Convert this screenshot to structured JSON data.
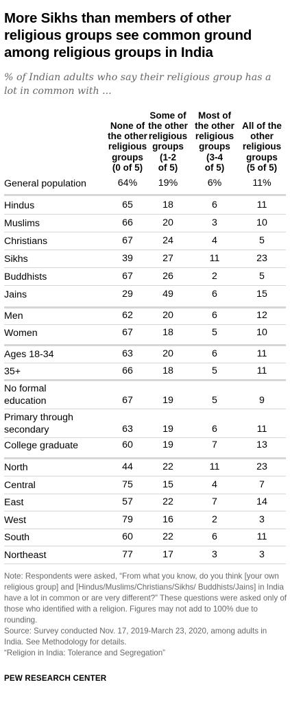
{
  "header": {
    "title": "More Sikhs than members of other religious groups see common ground among religious groups in India",
    "subtitle": "% of Indian adults who say their religious group has a lot in common with ..."
  },
  "chart_data": {
    "type": "table",
    "columns": [
      "None of\nthe other\nreligious\ngroups\n(0 of 5)",
      "Some of\nthe other\nreligious\ngroups\n(1-2\nof 5)",
      "Most of\nthe other\nreligious\ngroups\n(3-4\nof 5)",
      "All of the\nother\nreligious\ngroups\n(5 of 5)"
    ],
    "rows": [
      {
        "label": "General population",
        "values": [
          "64%",
          "19%",
          "6%",
          "11%"
        ]
      },
      {
        "label": "Hindus",
        "values": [
          "65",
          "18",
          "6",
          "11"
        ]
      },
      {
        "label": "Muslims",
        "values": [
          "66",
          "20",
          "3",
          "10"
        ]
      },
      {
        "label": "Christians",
        "values": [
          "67",
          "24",
          "4",
          "5"
        ]
      },
      {
        "label": "Sikhs",
        "values": [
          "39",
          "27",
          "11",
          "23"
        ]
      },
      {
        "label": "Buddhists",
        "values": [
          "67",
          "26",
          "2",
          "5"
        ]
      },
      {
        "label": "Jains",
        "values": [
          "29",
          "49",
          "6",
          "15"
        ]
      },
      {
        "label": "Men",
        "values": [
          "62",
          "20",
          "6",
          "12"
        ]
      },
      {
        "label": "Women",
        "values": [
          "67",
          "18",
          "5",
          "10"
        ]
      },
      {
        "label": "Ages 18-34",
        "values": [
          "63",
          "20",
          "6",
          "11"
        ]
      },
      {
        "label": "35+",
        "values": [
          "66",
          "18",
          "5",
          "11"
        ]
      },
      {
        "label": "No formal\neducation",
        "values": [
          "67",
          "19",
          "5",
          "9"
        ]
      },
      {
        "label": "Primary through\nsecondary",
        "values": [
          "63",
          "19",
          "6",
          "11"
        ]
      },
      {
        "label": "College graduate",
        "values": [
          "60",
          "19",
          "7",
          "13"
        ]
      },
      {
        "label": "North",
        "values": [
          "44",
          "22",
          "11",
          "23"
        ]
      },
      {
        "label": "Central",
        "values": [
          "75",
          "15",
          "4",
          "7"
        ]
      },
      {
        "label": "East",
        "values": [
          "57",
          "22",
          "7",
          "14"
        ]
      },
      {
        "label": "West",
        "values": [
          "79",
          "16",
          "2",
          "3"
        ]
      },
      {
        "label": "South",
        "values": [
          "60",
          "22",
          "6",
          "11"
        ]
      },
      {
        "label": "Northeast",
        "values": [
          "77",
          "17",
          "3",
          "3"
        ]
      }
    ]
  },
  "footer": {
    "note": "Note: Respondents were asked, “From what you know, do you think [your own religious group] and [Hindus/Muslims/Christians/Sikhs/ Buddhists/Jains] in India have a lot in common or are very different?” These questions were asked only of those who identified with a religion. Figures may not add to 100% due to rounding.",
    "source": "Source: Survey conducted Nov. 17, 2019-March 23, 2020, among adults in India. See Methodology for details.",
    "report": "“Religion in India: Tolerance and Segregation”",
    "org": "PEW RESEARCH CENTER"
  }
}
